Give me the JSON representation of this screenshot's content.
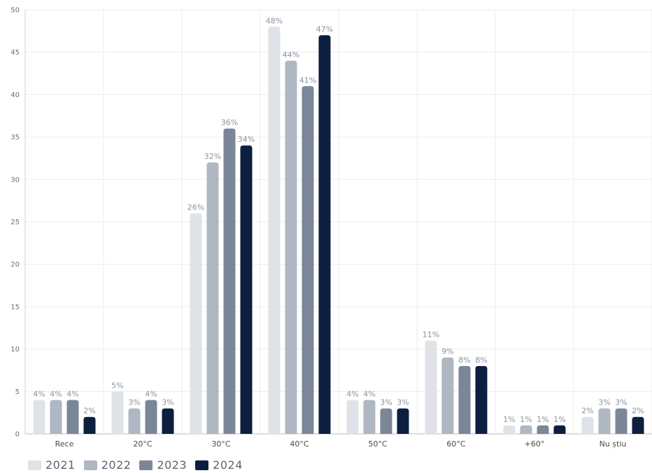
{
  "chart_data": {
    "type": "bar",
    "title": "",
    "xlabel": "",
    "ylabel": "",
    "ylim": [
      0,
      50
    ],
    "yticks": [
      0,
      5,
      10,
      15,
      20,
      25,
      30,
      35,
      40,
      45,
      50
    ],
    "grid": true,
    "legend_position": "bottom-left",
    "categories": [
      "Rece",
      "20°C",
      "30°C",
      "40°C",
      "50°C",
      "60°C",
      "+60°",
      "Nu știu"
    ],
    "series": [
      {
        "name": "2021",
        "color": "#dfe3e7",
        "values": [
          4,
          5,
          26,
          48,
          4,
          11,
          1,
          2
        ],
        "labels": [
          "4%",
          "5%",
          "26%",
          "48%",
          "4%",
          "11%",
          "1%",
          "2%"
        ]
      },
      {
        "name": "2022",
        "color": "#aeb7c2",
        "values": [
          4,
          3,
          32,
          44,
          4,
          9,
          1,
          3
        ],
        "labels": [
          "4%",
          "3%",
          "32%",
          "44%",
          "4%",
          "9%",
          "1%",
          "3%"
        ]
      },
      {
        "name": "2023",
        "color": "#7b8798",
        "values": [
          4,
          4,
          36,
          41,
          3,
          8,
          1,
          3
        ],
        "labels": [
          "4%",
          "4%",
          "36%",
          "41%",
          "3%",
          "8%",
          "1%",
          "3%"
        ]
      },
      {
        "name": "2024",
        "color": "#0d1f3f",
        "values": [
          2,
          3,
          34,
          47,
          3,
          8,
          1,
          2
        ],
        "labels": [
          "2%",
          "3%",
          "34%",
          "47%",
          "3%",
          "8%",
          "1%",
          "2%"
        ]
      }
    ]
  }
}
